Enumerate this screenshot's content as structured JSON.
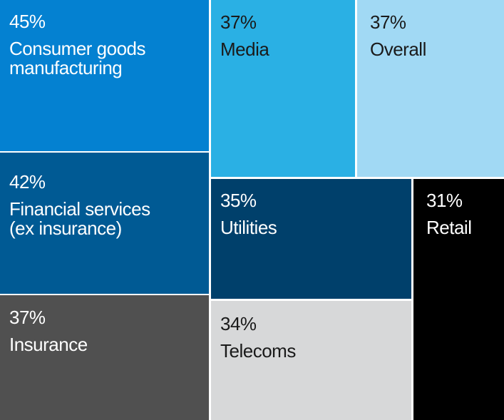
{
  "chart_data": {
    "type": "treemap",
    "unit": "%",
    "items": [
      {
        "label": "Consumer goods\nmanufacturing",
        "value": 45,
        "value_label": "45%",
        "color": "#0481d1",
        "text_color": "#ffffff"
      },
      {
        "label": "Financial services\n(ex insurance)",
        "value": 42,
        "value_label": "42%",
        "color": "#005a94",
        "text_color": "#ffffff"
      },
      {
        "label": "Insurance",
        "value": 37,
        "value_label": "37%",
        "color": "#505050",
        "text_color": "#ffffff"
      },
      {
        "label": "Media",
        "value": 37,
        "value_label": "37%",
        "color": "#2ab0e4",
        "text_color": "#1a1a1a"
      },
      {
        "label": "Overall",
        "value": 37,
        "value_label": "37%",
        "color": "#a1d9f4",
        "text_color": "#1a1a1a"
      },
      {
        "label": "Utilities",
        "value": 35,
        "value_label": "35%",
        "color": "#00406b",
        "text_color": "#ffffff"
      },
      {
        "label": "Telecoms",
        "value": 34,
        "value_label": "34%",
        "color": "#d7d8d9",
        "text_color": "#1a1a1a"
      },
      {
        "label": "Retail",
        "value": 31,
        "value_label": "31%",
        "color": "#000000",
        "text_color": "#ffffff"
      }
    ]
  }
}
